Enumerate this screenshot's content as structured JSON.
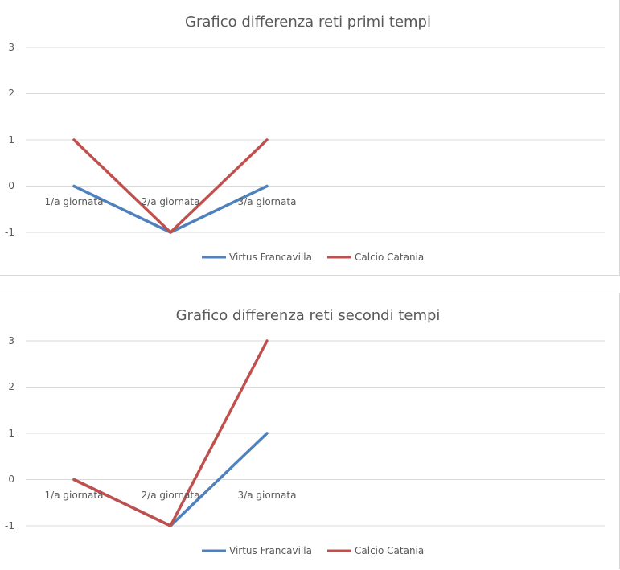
{
  "chart_data": [
    {
      "type": "line",
      "title": "Grafico differenza reti primi tempi",
      "categories": [
        "1/a giornata",
        "2/a giornata",
        "3/a giornata"
      ],
      "y_ticks": [
        "3",
        "2",
        "1",
        "0",
        "-1"
      ],
      "ylim": [
        -1,
        3
      ],
      "grid": true,
      "legend_position": "bottom",
      "series": [
        {
          "name": "Virtus Francavilla",
          "values": [
            0,
            -1,
            0
          ],
          "color": "#4f81bd"
        },
        {
          "name": "Calcio Catania",
          "values": [
            1,
            -1,
            1
          ],
          "color": "#c0504d"
        }
      ]
    },
    {
      "type": "line",
      "title": "Grafico differenza reti secondi tempi",
      "categories": [
        "1/a giornata",
        "2/a giornata",
        "3/a giornata"
      ],
      "y_ticks": [
        "3",
        "2",
        "1",
        "0",
        "-1"
      ],
      "ylim": [
        -1,
        3
      ],
      "grid": true,
      "legend_position": "bottom",
      "series": [
        {
          "name": "Virtus Francavilla",
          "values": [
            0,
            -1,
            1
          ],
          "color": "#4f81bd"
        },
        {
          "name": "Calcio Catania",
          "values": [
            0,
            -1,
            3
          ],
          "color": "#c0504d"
        }
      ]
    }
  ]
}
